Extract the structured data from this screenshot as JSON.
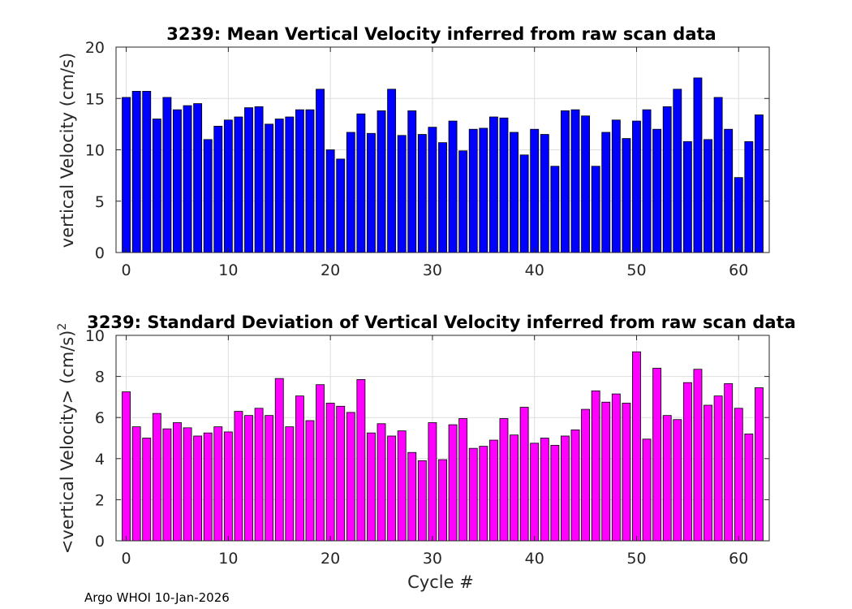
{
  "footer": "Argo WHOI 10-Jan-2026",
  "chart_data": [
    {
      "type": "bar",
      "title": "3239: Mean Vertical Velocity inferred from raw scan data",
      "xlabel": "",
      "ylabel": "vertical Velocity (cm/s)",
      "xlim": [
        -1,
        63
      ],
      "ylim": [
        0,
        20
      ],
      "xticks": [
        0,
        10,
        20,
        30,
        40,
        50,
        60
      ],
      "yticks": [
        0,
        5,
        10,
        15,
        20
      ],
      "grid": true,
      "color": "#0000ff",
      "x": [
        0,
        1,
        2,
        3,
        4,
        5,
        6,
        7,
        8,
        9,
        10,
        11,
        12,
        13,
        14,
        15,
        16,
        17,
        18,
        19,
        20,
        21,
        22,
        23,
        24,
        25,
        26,
        27,
        28,
        29,
        30,
        31,
        32,
        33,
        34,
        35,
        36,
        37,
        38,
        39,
        40,
        41,
        42,
        43,
        44,
        45,
        46,
        47,
        48,
        49,
        50,
        51,
        52,
        53,
        54,
        55,
        56,
        57,
        58,
        59,
        60,
        61,
        62
      ],
      "values": [
        15.1,
        15.7,
        15.7,
        13.0,
        15.1,
        13.9,
        14.3,
        14.5,
        11.0,
        12.3,
        12.9,
        13.2,
        14.1,
        14.2,
        12.5,
        13.0,
        13.2,
        13.9,
        13.9,
        15.9,
        10.0,
        9.1,
        11.7,
        13.5,
        11.6,
        13.8,
        15.9,
        11.4,
        13.8,
        11.5,
        12.2,
        10.7,
        12.8,
        9.9,
        12.0,
        12.1,
        13.2,
        13.1,
        11.7,
        9.5,
        12.0,
        11.5,
        8.4,
        13.8,
        13.9,
        13.3,
        8.4,
        11.7,
        12.9,
        11.1,
        12.8,
        13.9,
        12.0,
        14.2,
        15.9,
        10.8,
        17.0,
        11.0,
        15.1,
        12.0,
        7.3,
        10.8,
        13.4
      ]
    },
    {
      "type": "bar",
      "title": "3239: Standard Deviation of Vertical Velocity inferred from raw scan data",
      "xlabel": "Cycle #",
      "ylabel": "<vertical Velocity> (cm/s)",
      "ylabel_superscript": "2",
      "xlim": [
        -1,
        63
      ],
      "ylim": [
        0,
        10
      ],
      "xticks": [
        0,
        10,
        20,
        30,
        40,
        50,
        60
      ],
      "yticks": [
        0,
        2,
        4,
        6,
        8,
        10
      ],
      "grid": true,
      "color": "#ff00ff",
      "x": [
        0,
        1,
        2,
        3,
        4,
        5,
        6,
        7,
        8,
        9,
        10,
        11,
        12,
        13,
        14,
        15,
        16,
        17,
        18,
        19,
        20,
        21,
        22,
        23,
        24,
        25,
        26,
        27,
        28,
        29,
        30,
        31,
        32,
        33,
        34,
        35,
        36,
        37,
        38,
        39,
        40,
        41,
        42,
        43,
        44,
        45,
        46,
        47,
        48,
        49,
        50,
        51,
        52,
        53,
        54,
        55,
        56,
        57,
        58,
        59,
        60,
        61,
        62
      ],
      "values": [
        7.25,
        5.55,
        5.0,
        6.2,
        5.45,
        5.75,
        5.5,
        5.1,
        5.25,
        5.55,
        5.3,
        6.3,
        6.1,
        6.45,
        6.1,
        7.9,
        5.55,
        7.05,
        5.85,
        7.6,
        6.7,
        6.55,
        6.25,
        7.85,
        5.25,
        5.7,
        5.1,
        5.35,
        4.3,
        3.9,
        5.75,
        3.95,
        5.65,
        5.95,
        4.5,
        4.6,
        4.9,
        5.95,
        5.15,
        6.5,
        4.75,
        5.0,
        4.65,
        5.1,
        5.4,
        6.4,
        7.3,
        6.75,
        7.15,
        6.7,
        9.2,
        4.95,
        8.4,
        6.1,
        5.9,
        7.7,
        8.35,
        6.6,
        7.05,
        7.65,
        6.45,
        5.2,
        7.45
      ]
    }
  ]
}
